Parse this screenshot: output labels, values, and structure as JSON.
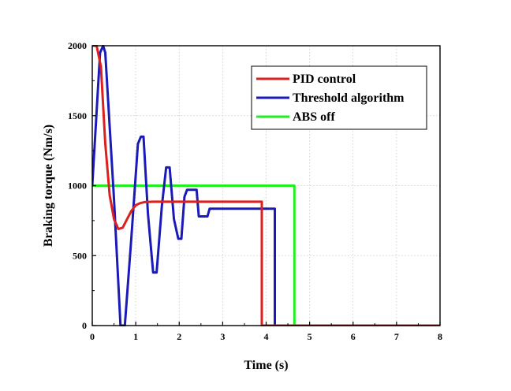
{
  "chart_data": {
    "type": "line",
    "title": "",
    "xlabel": "Time (s)",
    "ylabel": "Braking torque (Nm/s)",
    "xlim": [
      0,
      8
    ],
    "ylim": [
      0,
      2000
    ],
    "x_ticks": [
      "0",
      "1",
      "2",
      "3",
      "4",
      "5",
      "6",
      "7",
      "8"
    ],
    "y_ticks": [
      "0",
      "500",
      "1000",
      "1500",
      "2000"
    ],
    "grid": true,
    "legend_position": "top-right",
    "series": [
      {
        "name": "PID control",
        "color": "#dd1f1f",
        "x": [
          0.0,
          0.1,
          0.2,
          0.3,
          0.4,
          0.5,
          0.6,
          0.7,
          0.8,
          0.9,
          1.0,
          1.1,
          1.2,
          1.4,
          1.6,
          2.0,
          3.0,
          3.9,
          3.9,
          4.6,
          8.0
        ],
        "y": [
          2000,
          2000,
          1850,
          1300,
          930,
          760,
          690,
          700,
          760,
          820,
          860,
          875,
          882,
          885,
          885,
          885,
          885,
          885,
          0,
          0,
          0
        ]
      },
      {
        "name": "Threshold algorithm",
        "color": "#1a1ab8",
        "x": [
          0.0,
          0.18,
          0.25,
          0.3,
          0.5,
          0.65,
          0.75,
          0.9,
          1.05,
          1.12,
          1.18,
          1.28,
          1.4,
          1.48,
          1.6,
          1.7,
          1.78,
          1.88,
          1.98,
          2.05,
          2.12,
          2.18,
          2.35,
          2.4,
          2.45,
          2.65,
          2.7,
          4.2,
          4.2,
          4.6,
          8.0
        ],
        "y": [
          1000,
          1950,
          2000,
          1950,
          900,
          0,
          0,
          630,
          1300,
          1350,
          1350,
          800,
          380,
          380,
          850,
          1130,
          1130,
          760,
          620,
          620,
          920,
          970,
          970,
          970,
          780,
          780,
          835,
          835,
          0,
          0,
          0
        ]
      },
      {
        "name": "ABS off",
        "color": "#22ee22",
        "x": [
          0.0,
          4.65,
          4.65,
          8.0
        ],
        "y": [
          1000,
          1000,
          0,
          0
        ]
      }
    ]
  }
}
